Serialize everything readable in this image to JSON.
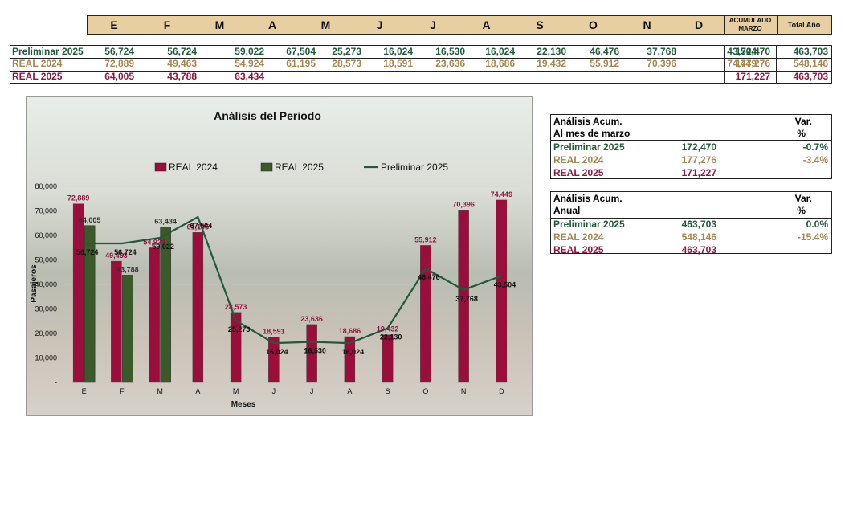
{
  "header": {
    "months": [
      "E",
      "F",
      "M",
      "A",
      "M",
      "J",
      "J",
      "A",
      "S",
      "O",
      "N",
      "D"
    ],
    "acum_label_line1": "ACUMULADO",
    "acum_label_line2": "MARZO",
    "total_label": "Total Año"
  },
  "table": {
    "rows": [
      {
        "label": "Preliminar 2025",
        "values": [
          "56,724",
          "56,724",
          "59,022",
          "67,504",
          "25,273",
          "16,024",
          "16,530",
          "16,024",
          "22,130",
          "46,476",
          "37,768",
          "43,504"
        ],
        "acum": "172,470",
        "total": "463,703"
      },
      {
        "label": "REAL 2024",
        "values": [
          "72,889",
          "49,463",
          "54,924",
          "61,195",
          "28,573",
          "18,591",
          "23,636",
          "18,686",
          "19,432",
          "55,912",
          "70,396",
          "74,449"
        ],
        "acum": "177,276",
        "total": "548,146"
      },
      {
        "label": "REAL 2025",
        "values": [
          "64,005",
          "43,788",
          "63,434",
          "",
          "",
          "",
          "",
          "",
          "",
          "",
          "",
          ""
        ],
        "acum": "171,227",
        "total": "463,703"
      }
    ]
  },
  "colors": {
    "preliminar": "#1f5a3a",
    "real2024_text": "#a88650",
    "real2024_bar": "#9b0d3a",
    "real2025_text": "#8e1740",
    "real2025_bar": "#3a5a2a",
    "header_bg": "#e8cfa1"
  },
  "chart_data": {
    "type": "bar",
    "title": "Análisis del Periodo",
    "xlabel": "Meses",
    "ylabel": "Pasajeros",
    "ylim": [
      0,
      80000
    ],
    "yticks": [
      0,
      10000,
      20000,
      30000,
      40000,
      50000,
      60000,
      70000,
      80000
    ],
    "ytick_labels": [
      "-",
      "10,000",
      "20,000",
      "30,000",
      "40,000",
      "50,000",
      "60,000",
      "70,000",
      "80,000"
    ],
    "categories": [
      "E",
      "F",
      "M",
      "A",
      "M",
      "J",
      "J",
      "A",
      "S",
      "O",
      "N",
      "D"
    ],
    "legend": [
      "REAL 2024",
      "REAL 2025",
      "Preliminar 2025"
    ],
    "legend_position": "top",
    "series": [
      {
        "name": "REAL 2024",
        "type": "bar",
        "values": [
          72889,
          49463,
          54924,
          61195,
          28573,
          18591,
          23636,
          18686,
          19432,
          55912,
          70396,
          74449
        ],
        "labels": [
          "72,889",
          "49,463",
          "54,924",
          "61,195",
          "28,573",
          "18,591",
          "23,636",
          "18,686",
          "19,432",
          "55,912",
          "70,396",
          "74,449"
        ]
      },
      {
        "name": "REAL 2025",
        "type": "bar",
        "values": [
          64005,
          43788,
          63434,
          null,
          null,
          null,
          null,
          null,
          null,
          null,
          null,
          null
        ],
        "labels": [
          "64,005",
          "43,788",
          "63,434",
          "",
          "",
          "",
          "",
          "",
          "",
          "",
          "",
          ""
        ]
      },
      {
        "name": "Preliminar 2025",
        "type": "line",
        "values": [
          56724,
          56724,
          59022,
          67504,
          25273,
          16024,
          16530,
          16024,
          22130,
          46476,
          37768,
          43504
        ],
        "labels": [
          "56,724",
          "56,724",
          "59,022",
          "67,504",
          "25,273",
          "16,024",
          "16,530",
          "16,024",
          "22,130",
          "46,476",
          "37,768",
          "43,504"
        ]
      }
    ]
  },
  "box_marzo": {
    "title": "Análisis  Acum.",
    "subtitle": "Al mes de marzo",
    "var_label": "Var.",
    "pct_label": "%",
    "rows": [
      {
        "label": "Preliminar 2025",
        "value": "172,470",
        "var": "-0.7%"
      },
      {
        "label": "REAL 2024",
        "value": "177,276",
        "var": "-3.4%"
      },
      {
        "label": "REAL 2025",
        "value": "171,227",
        "var": ""
      }
    ]
  },
  "box_anual": {
    "title": "Análisis  Acum.",
    "subtitle": "Anual",
    "var_label": "Var.",
    "pct_label": "%",
    "rows": [
      {
        "label": "Preliminar 2025",
        "value": "463,703",
        "var": "0.0%"
      },
      {
        "label": "REAL 2024",
        "value": "548,146",
        "var": "-15.4%"
      },
      {
        "label": "REAL 2025",
        "value": "463,703",
        "var": ""
      }
    ]
  }
}
